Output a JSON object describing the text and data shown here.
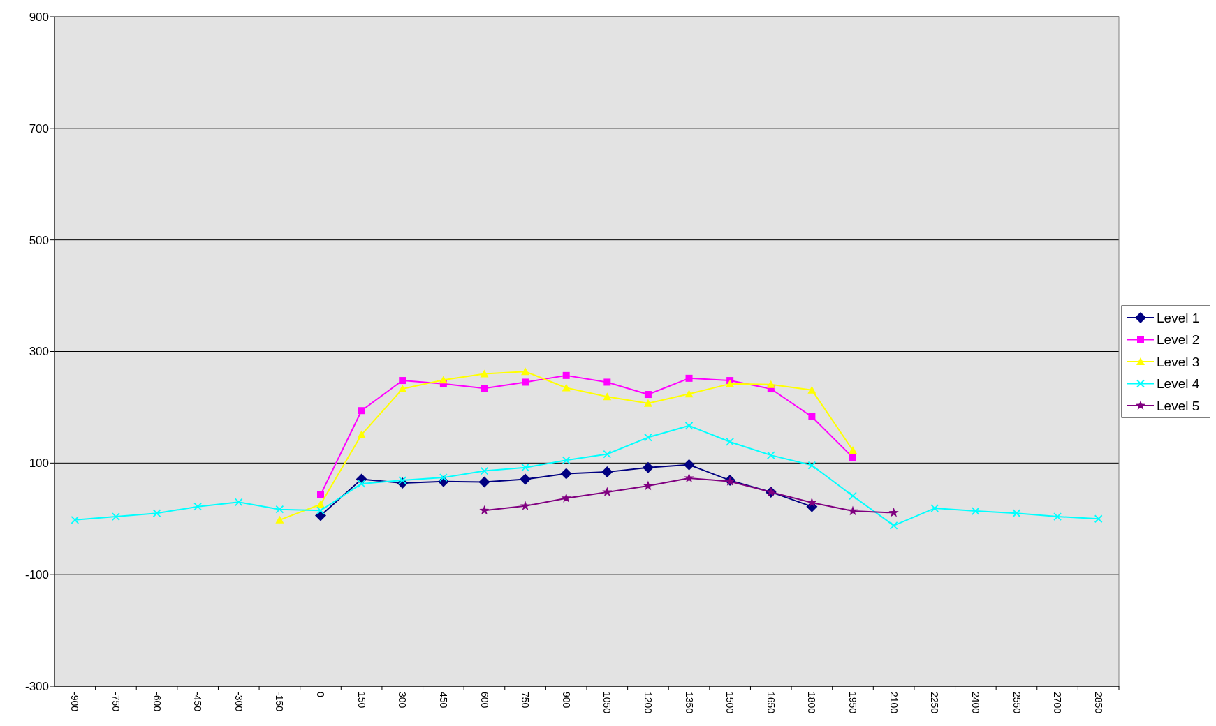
{
  "chart_data": {
    "type": "line",
    "categories": [
      "-900",
      "-750",
      "-600",
      "-450",
      "-300",
      "-150",
      "0",
      "150",
      "300",
      "450",
      "600",
      "750",
      "900",
      "1050",
      "1200",
      "1350",
      "1500",
      "1650",
      "1800",
      "1950",
      "2100",
      "2250",
      "2400",
      "2550",
      "2700",
      "2850"
    ],
    "ylim": [
      -300,
      900
    ],
    "yticks": [
      -300,
      -100,
      100,
      300,
      500,
      700,
      900
    ],
    "grid": "y",
    "legend": "right",
    "series": [
      {
        "name": "Level 1",
        "color": "#000080",
        "marker": "diamond",
        "values": [
          null,
          null,
          null,
          null,
          null,
          null,
          6,
          71,
          64,
          67,
          66,
          71,
          81,
          84,
          92,
          97,
          69,
          48,
          22,
          null,
          null,
          null,
          null,
          null,
          null,
          null
        ]
      },
      {
        "name": "Level 2",
        "color": "#ff00ff",
        "marker": "square",
        "values": [
          null,
          null,
          null,
          null,
          null,
          null,
          43,
          194,
          248,
          242,
          234,
          245,
          257,
          245,
          223,
          252,
          248,
          233,
          183,
          110,
          null,
          null,
          null,
          null,
          null,
          null
        ]
      },
      {
        "name": "Level 3",
        "color": "#ffff00",
        "marker": "triangle",
        "values": [
          null,
          null,
          null,
          null,
          null,
          -2,
          26,
          151,
          233,
          249,
          260,
          264,
          235,
          219,
          207,
          224,
          242,
          241,
          231,
          123,
          null,
          null,
          null,
          null,
          null,
          null
        ]
      },
      {
        "name": "Level 4",
        "color": "#00ffff",
        "marker": "cross",
        "values": [
          -2,
          4,
          10,
          22,
          30,
          17,
          15,
          63,
          69,
          74,
          86,
          92,
          105,
          116,
          146,
          167,
          138,
          114,
          96,
          41,
          -12,
          19,
          14,
          10,
          4,
          0
        ]
      },
      {
        "name": "Level 5",
        "color": "#800080",
        "marker": "star",
        "values": [
          null,
          null,
          null,
          null,
          null,
          null,
          null,
          null,
          null,
          null,
          15,
          23,
          37,
          48,
          59,
          73,
          67,
          48,
          29,
          14,
          11,
          null,
          null,
          null,
          null,
          null
        ]
      }
    ]
  }
}
